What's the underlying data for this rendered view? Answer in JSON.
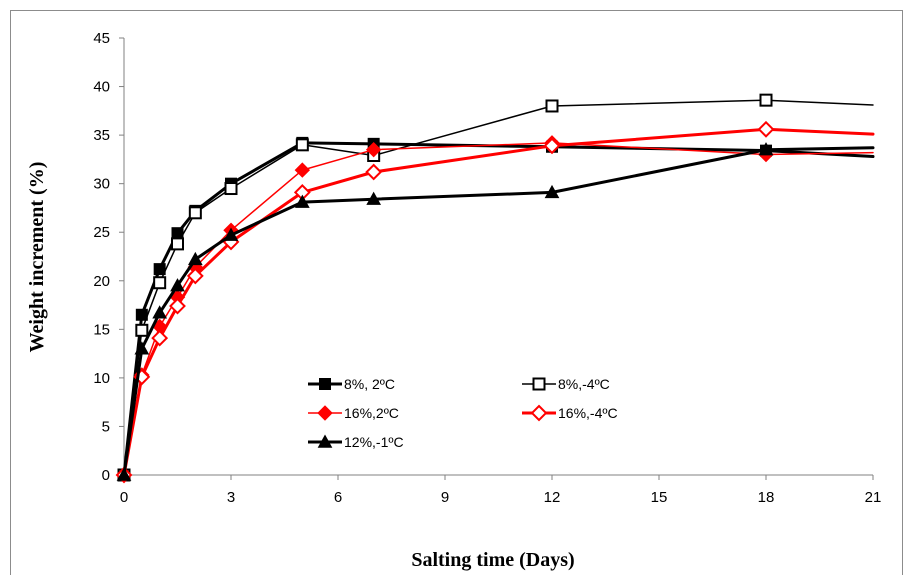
{
  "chart_data": {
    "type": "line",
    "xlabel": "Salting time (Days)",
    "ylabel": "Weight increment (%)",
    "xlim": [
      0,
      21
    ],
    "ylim": [
      0,
      45
    ],
    "xticks": [
      0,
      3,
      6,
      9,
      12,
      15,
      18,
      21
    ],
    "yticks": [
      0,
      5,
      10,
      15,
      20,
      25,
      30,
      35,
      40,
      45
    ],
    "grid": false,
    "legend_position": "lower-center",
    "series": [
      {
        "name": "8%, 2ºC",
        "color": "#000000",
        "marker": "square-filled",
        "line_width": 3,
        "x": [
          0,
          0.5,
          1,
          1.5,
          2,
          3,
          5,
          7,
          12,
          18,
          21
        ],
        "y": [
          0,
          16.5,
          21.2,
          24.9,
          27.2,
          30,
          34.2,
          34.1,
          33.8,
          33.4,
          32.8
        ]
      },
      {
        "name": "8%,-4ºC",
        "color": "#000000",
        "marker": "square-open",
        "line_width": 1.5,
        "x": [
          0,
          0.5,
          1,
          1.5,
          2,
          3,
          5,
          7,
          12,
          18,
          21
        ],
        "y": [
          0,
          14.9,
          19.8,
          23.8,
          27,
          29.5,
          34,
          32.9,
          38,
          38.6,
          38.1
        ]
      },
      {
        "name": "16%,2ºC",
        "color": "#ff0000",
        "marker": "diamond-filled",
        "line_width": 1.5,
        "x": [
          0,
          0.5,
          1,
          1.5,
          2,
          3,
          5,
          7,
          12,
          18,
          21
        ],
        "y": [
          0,
          10.3,
          15.3,
          18.3,
          21.4,
          25.2,
          31.4,
          33.5,
          34.2,
          33,
          33.2
        ]
      },
      {
        "name": "16%,-4ºC",
        "color": "#ff0000",
        "marker": "diamond-open",
        "line_width": 3,
        "x": [
          0,
          0.5,
          1,
          1.5,
          2,
          3,
          5,
          7,
          12,
          18,
          21
        ],
        "y": [
          0,
          10.1,
          14.1,
          17.4,
          20.5,
          24,
          29.1,
          31.2,
          33.9,
          35.6,
          35.1
        ]
      },
      {
        "name": "12%,-1ºC",
        "color": "#000000",
        "marker": "triangle-filled",
        "line_width": 3,
        "x": [
          0,
          0.5,
          1,
          1.5,
          2,
          3,
          5,
          7,
          12,
          18,
          21
        ],
        "y": [
          0,
          13,
          16.7,
          19.5,
          22.2,
          24.7,
          28.1,
          28.4,
          29.1,
          33.5,
          33.7
        ]
      }
    ]
  }
}
